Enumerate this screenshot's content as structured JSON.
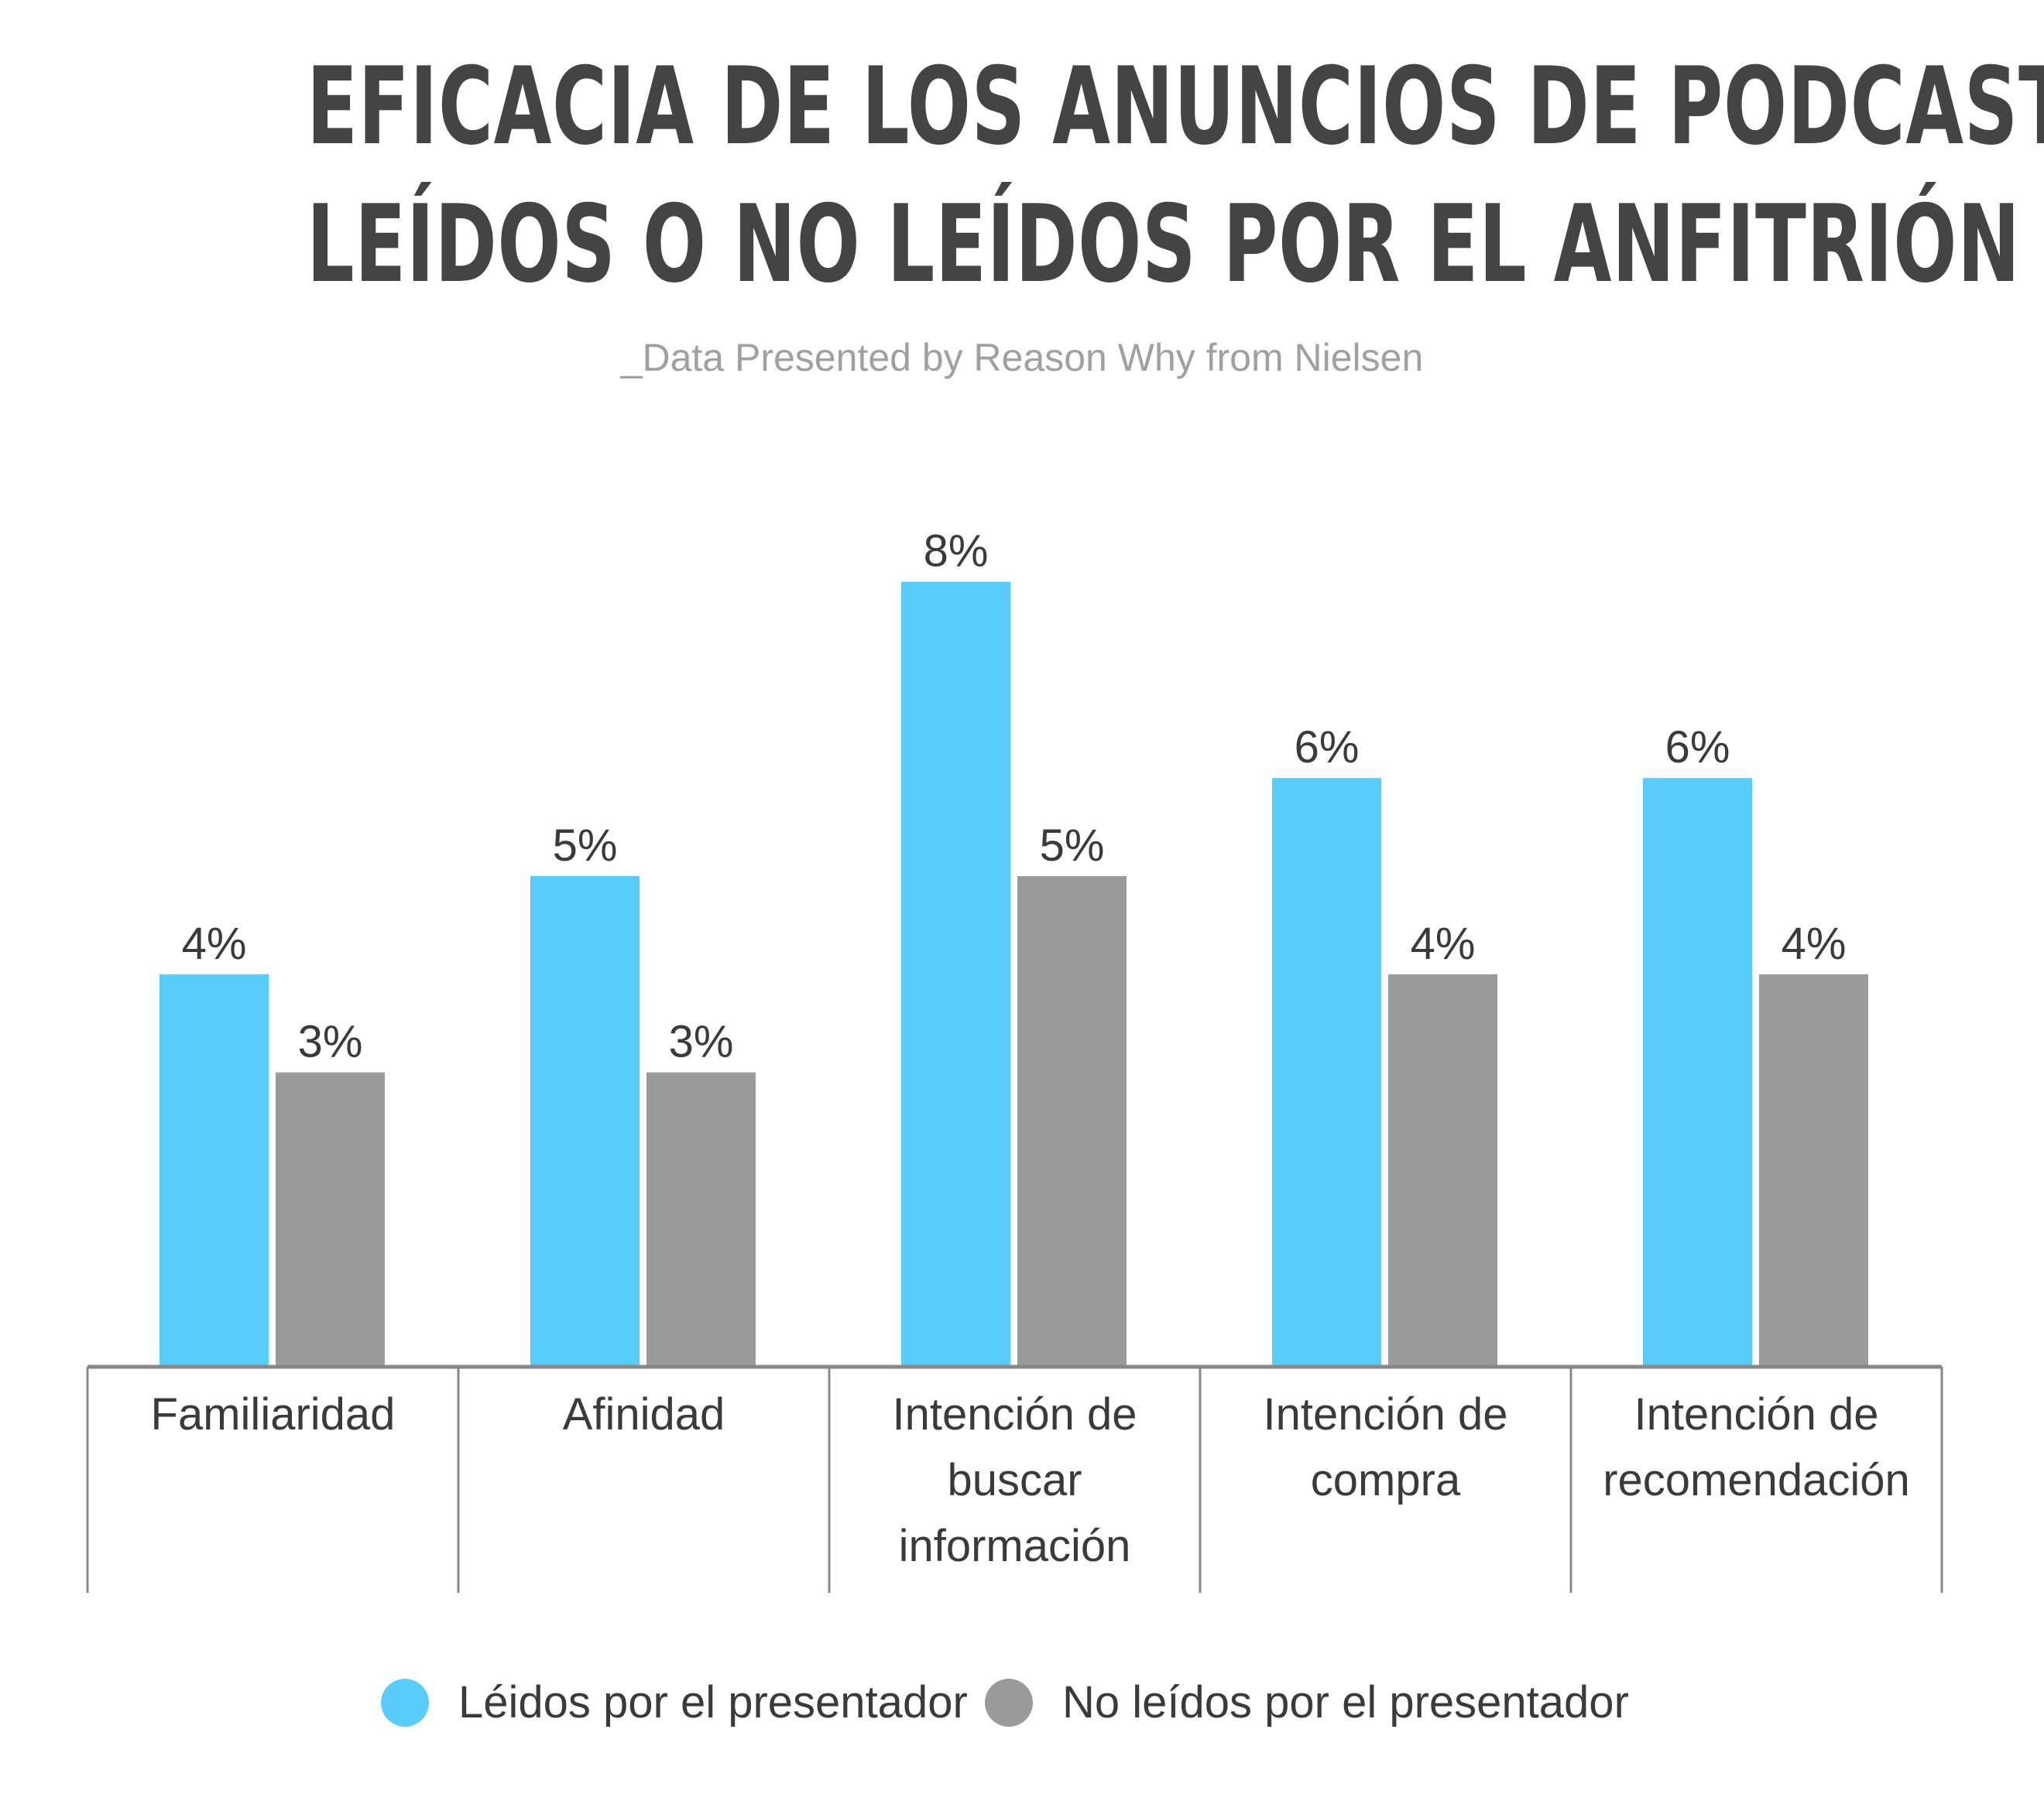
{
  "title_lines": [
    "EFICACIA DE LOS ANUNCIOS DE PODCAST",
    "LEÍDOS O NO LEÍDOS POR EL ANFITRIÓN"
  ],
  "subtitle": "_Data Presented by Reason Why from Nielsen",
  "colors": {
    "read": "#5accfa",
    "not_read": "#9a9a9a",
    "axis": "#888888",
    "text": "#3a3a3a",
    "title": "#444444",
    "subtitle": "#a0a0a0"
  },
  "chart_data": {
    "type": "bar",
    "title": "EFICACIA DE LOS ANUNCIOS DE PODCAST LEÍDOS O NO LEÍDOS POR EL ANFITRIÓN",
    "subtitle": "_Data Presented by Reason Why from Nielsen",
    "categories": [
      "Familiaridad",
      "Afinidad",
      "Intención de buscar información",
      "Intención de compra",
      "Intención de recomendación"
    ],
    "category_lines": [
      [
        "Familiaridad"
      ],
      [
        "Afinidad"
      ],
      [
        "Intención de",
        "buscar",
        "información"
      ],
      [
        "Intención de",
        "compra"
      ],
      [
        "Intención de",
        "recomendación"
      ]
    ],
    "series": [
      {
        "name": "Léidos por el presentador",
        "values": [
          4,
          5,
          8,
          6,
          6
        ],
        "labels": [
          "4%",
          "5%",
          "8%",
          "6%",
          "6%"
        ],
        "color": "#5accfa"
      },
      {
        "name": "No leídos por el presentador",
        "values": [
          3,
          3,
          5,
          4,
          4
        ],
        "labels": [
          "3%",
          "3%",
          "5%",
          "4%",
          "4%"
        ],
        "color": "#9a9a9a"
      }
    ],
    "ylim": [
      0,
      8
    ],
    "grid": false,
    "legend": "bottom-center",
    "xlabel": "",
    "ylabel": ""
  }
}
